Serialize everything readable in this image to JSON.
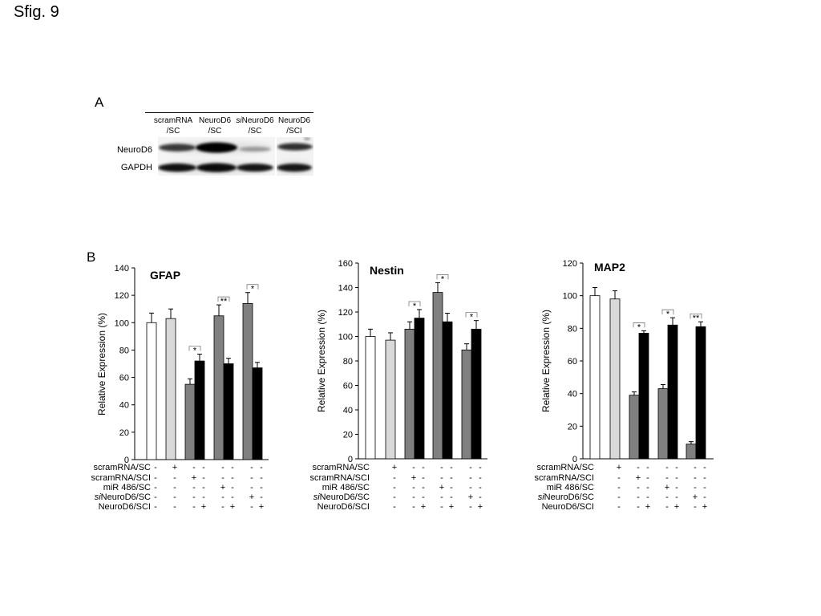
{
  "figure": {
    "title": "Sfig. 9"
  },
  "panel_a": {
    "label": "A",
    "lanes": [
      {
        "line1": "scramRNA",
        "line2": "/SC"
      },
      {
        "line1": "NeuroD6",
        "line2": "/SC"
      },
      {
        "prefix_italic": "si",
        "line1": "NeuroD6",
        "line2": "/SC"
      },
      {
        "line1": "NeuroD6",
        "line2": "/SCI"
      }
    ],
    "rows": [
      "NeuroD6",
      "GAPDH"
    ]
  },
  "panel_b": {
    "label": "B"
  },
  "chart_data": [
    {
      "type": "bar",
      "title": "GFAP",
      "ylabel": "Relative Expression (%)",
      "ylim": [
        0,
        140
      ],
      "yticks": [
        0,
        20,
        40,
        60,
        80,
        100,
        120,
        140
      ],
      "values": [
        100,
        103,
        55,
        72,
        105,
        70,
        114,
        67
      ],
      "errors": [
        7,
        7,
        4,
        5,
        8,
        4,
        8,
        4
      ],
      "bar_colors": [
        "#ffffff",
        "#d9d9d9",
        "#808080",
        "#000000",
        "#808080",
        "#000000",
        "#808080",
        "#000000"
      ],
      "significance": [
        {
          "bars": [
            2,
            3
          ],
          "label": "*"
        },
        {
          "bars": [
            4,
            5
          ],
          "label": "**"
        },
        {
          "bars": [
            6,
            7
          ],
          "label": "*"
        }
      ],
      "conditions": [
        {
          "label": "scramRNA/SC",
          "values": [
            "-",
            "+",
            "-",
            "-",
            "-",
            "-",
            "-",
            "-"
          ]
        },
        {
          "label": "scramRNA/SCI",
          "values": [
            "-",
            "-",
            "+",
            "-",
            "-",
            "-",
            "-",
            "-"
          ]
        },
        {
          "label": "miR 486/SC",
          "values": [
            "-",
            "-",
            "-",
            "-",
            "+",
            "-",
            "-",
            "-"
          ]
        },
        {
          "label_italic_prefix": "si",
          "label": "NeuroD6/SC",
          "values": [
            "-",
            "-",
            "-",
            "-",
            "-",
            "-",
            "+",
            "-"
          ]
        },
        {
          "label": "NeuroD6/SCI",
          "values": [
            "-",
            "-",
            "-",
            "+",
            "-",
            "+",
            "-",
            "+"
          ]
        }
      ]
    },
    {
      "type": "bar",
      "title": "Nestin",
      "ylabel": "Relative Expression (%)",
      "ylim": [
        0,
        160
      ],
      "yticks": [
        0,
        20,
        40,
        60,
        80,
        100,
        120,
        140,
        160
      ],
      "values": [
        100,
        97,
        106,
        115,
        136,
        112,
        89,
        106
      ],
      "errors": [
        6,
        6,
        6,
        7,
        8,
        7,
        5,
        7
      ],
      "bar_colors": [
        "#ffffff",
        "#d9d9d9",
        "#808080",
        "#000000",
        "#808080",
        "#000000",
        "#808080",
        "#000000"
      ],
      "significance": [
        {
          "bars": [
            2,
            3
          ],
          "label": "*"
        },
        {
          "bars": [
            4,
            5
          ],
          "label": "*"
        },
        {
          "bars": [
            6,
            7
          ],
          "label": "*"
        }
      ],
      "conditions": [
        {
          "label": "scramRNA/SC",
          "values": [
            null,
            "+",
            "-",
            "-",
            "-",
            "-",
            "-",
            "-"
          ]
        },
        {
          "label": "scramRNA/SCI",
          "values": [
            null,
            "-",
            "+",
            "-",
            "-",
            "-",
            "-",
            "-"
          ]
        },
        {
          "label": "miR 486/SC",
          "values": [
            null,
            "-",
            "-",
            "-",
            "+",
            "-",
            "-",
            "-"
          ]
        },
        {
          "label_italic_prefix": "si",
          "label": "NeuroD6/SC",
          "values": [
            null,
            "-",
            "-",
            "-",
            "-",
            "-",
            "+",
            "-"
          ]
        },
        {
          "label": "NeuroD6/SCI",
          "values": [
            null,
            "-",
            "-",
            "+",
            "-",
            "+",
            "-",
            "+"
          ]
        }
      ]
    },
    {
      "type": "bar",
      "title": "MAP2",
      "ylabel": "Relative Expression (%)",
      "ylim": [
        0,
        120
      ],
      "yticks": [
        0,
        20,
        40,
        60,
        80,
        100,
        120
      ],
      "values": [
        100,
        98,
        39,
        77,
        43,
        82,
        9,
        81
      ],
      "errors": [
        5,
        5,
        2,
        1.5,
        2.5,
        4.5,
        1.5,
        3
      ],
      "bar_colors": [
        "#ffffff",
        "#d9d9d9",
        "#808080",
        "#000000",
        "#808080",
        "#000000",
        "#808080",
        "#000000"
      ],
      "significance": [
        {
          "bars": [
            2,
            3
          ],
          "label": "*"
        },
        {
          "bars": [
            4,
            5
          ],
          "label": "*"
        },
        {
          "bars": [
            6,
            7
          ],
          "label": "**"
        }
      ],
      "conditions": [
        {
          "label": "scramRNA/SC",
          "values": [
            null,
            "+",
            "-",
            "-",
            "-",
            "-",
            "-",
            "-"
          ]
        },
        {
          "label": "scramRNA/SCI",
          "values": [
            null,
            "-",
            "+",
            "-",
            "-",
            "-",
            "-",
            "-"
          ]
        },
        {
          "label": "miR 486/SC",
          "values": [
            null,
            "-",
            "-",
            "-",
            "+",
            "-",
            "-",
            "-"
          ]
        },
        {
          "label_italic_prefix": "si",
          "label": "NeuroD6/SC",
          "values": [
            null,
            "-",
            "-",
            "-",
            "-",
            "-",
            "+",
            "-"
          ]
        },
        {
          "label": "NeuroD6/SCI",
          "values": [
            null,
            "-",
            "-",
            "+",
            "-",
            "+",
            "-",
            "+"
          ]
        }
      ]
    }
  ]
}
